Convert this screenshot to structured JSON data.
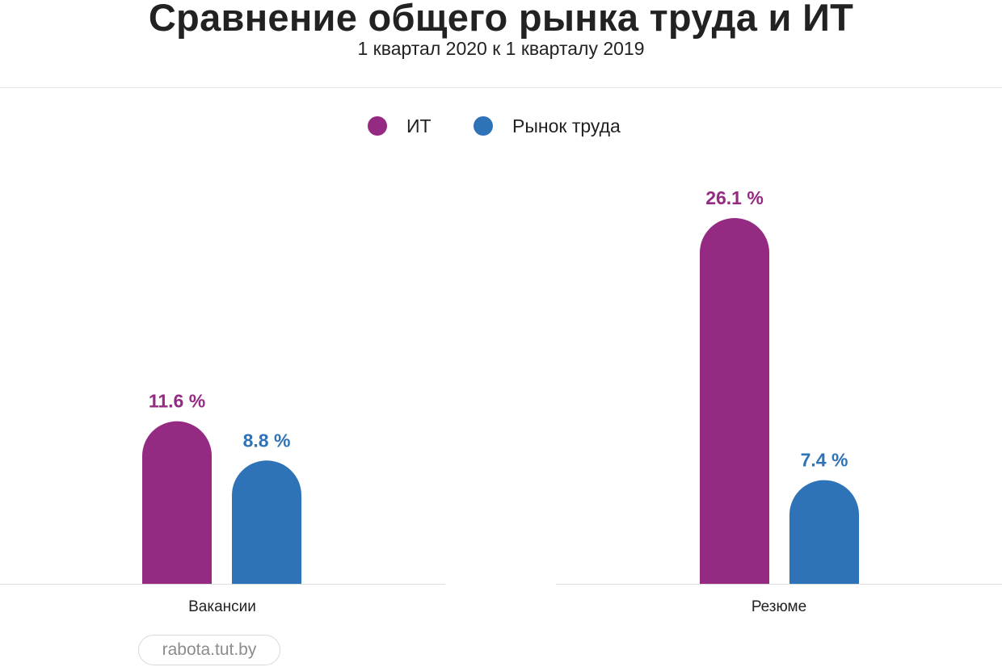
{
  "title": "Сравнение общего рынка труда и ИТ",
  "subtitle": "1 квартал 2020 к 1 кварталу 2019",
  "source": "rabota.tut.by",
  "colors": {
    "it": "#952a82",
    "labor_market": "#2e72b7",
    "text": "#222222",
    "axis": "#dddddd"
  },
  "legend": [
    {
      "label": "ИТ",
      "color": "#952a82"
    },
    {
      "label": "Рынок труда",
      "color": "#2e72b7"
    }
  ],
  "chart_data": {
    "type": "bar",
    "title": "Сравнение общего рынка труда и ИТ",
    "subtitle": "1 квартал 2020 к 1 кварталу 2019",
    "categories": [
      "Вакансии",
      "Резюме"
    ],
    "series": [
      {
        "name": "ИТ",
        "color": "#952a82",
        "values": [
          11.6,
          26.1
        ],
        "labels": [
          "11.6 %",
          "26.1 %"
        ]
      },
      {
        "name": "Рынок труда",
        "color": "#2e72b7",
        "values": [
          8.8,
          7.4
        ],
        "labels": [
          "8.8 %",
          "7.4 %"
        ]
      }
    ],
    "unit": "%",
    "xlabel": "",
    "ylabel": "",
    "ylim": [
      0,
      26.1
    ],
    "grid": false,
    "legend_position": "top-center"
  }
}
